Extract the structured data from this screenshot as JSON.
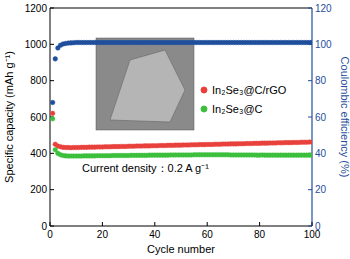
{
  "chart_data": {
    "type": "scatter",
    "xlabel": "Cycle number",
    "ylabel": "Specific capacity (mAh g⁻¹)",
    "y2label": "Coulombic efficiency (%)",
    "annotation": "Current density：0.2 A g⁻¹",
    "xlim": [
      0,
      100
    ],
    "xticks": [
      0,
      20,
      40,
      60,
      80,
      100
    ],
    "ylim": [
      0,
      1200
    ],
    "yticks": [
      0,
      200,
      400,
      600,
      800,
      1000,
      1200
    ],
    "y2lim": [
      0,
      120
    ],
    "y2ticks": [
      0,
      20,
      40,
      60,
      80,
      100,
      120
    ],
    "grid": false,
    "legend": "right",
    "x": [
      1,
      2,
      3,
      4,
      5,
      6,
      7,
      8,
      9,
      10,
      11,
      12,
      13,
      14,
      15,
      16,
      17,
      18,
      19,
      20,
      21,
      22,
      23,
      24,
      25,
      26,
      27,
      28,
      29,
      30,
      31,
      32,
      33,
      34,
      35,
      36,
      37,
      38,
      39,
      40,
      41,
      42,
      43,
      44,
      45,
      46,
      47,
      48,
      49,
      50,
      51,
      52,
      53,
      54,
      55,
      56,
      57,
      58,
      59,
      60,
      61,
      62,
      63,
      64,
      65,
      66,
      67,
      68,
      69,
      70,
      71,
      72,
      73,
      74,
      75,
      76,
      77,
      78,
      79,
      80,
      81,
      82,
      83,
      84,
      85,
      86,
      87,
      88,
      89,
      90,
      91,
      92,
      93,
      94,
      95,
      96,
      97,
      98,
      99,
      100
    ],
    "series": [
      {
        "name": "In₂Se₃@C/rGO",
        "color": "#e8413c",
        "marker": "circle",
        "values": [
          620,
          450,
          440,
          436,
          433,
          432,
          432,
          431,
          432,
          432,
          432,
          433,
          433,
          433,
          434,
          434,
          434,
          435,
          435,
          435,
          436,
          436,
          436,
          437,
          437,
          437,
          438,
          438,
          438,
          439,
          439,
          439,
          440,
          440,
          440,
          441,
          441,
          441,
          442,
          442,
          442,
          443,
          443,
          443,
          444,
          444,
          444,
          445,
          445,
          445,
          446,
          446,
          446,
          447,
          447,
          447,
          448,
          448,
          448,
          449,
          449,
          449,
          450,
          450,
          450,
          451,
          451,
          451,
          452,
          452,
          452,
          453,
          453,
          453,
          454,
          454,
          454,
          455,
          455,
          455,
          456,
          456,
          456,
          457,
          457,
          457,
          458,
          458,
          458,
          459,
          459,
          459,
          460,
          460,
          460,
          461,
          461,
          461,
          462,
          462
        ]
      },
      {
        "name": "In₂Se₃@C",
        "color": "#3cbf3c",
        "marker": "circle",
        "values": [
          590,
          420,
          400,
          392,
          388,
          386,
          385,
          385,
          385,
          385,
          385,
          385,
          386,
          386,
          386,
          386,
          386,
          387,
          387,
          387,
          387,
          387,
          387,
          388,
          388,
          388,
          388,
          388,
          388,
          388,
          389,
          389,
          389,
          389,
          389,
          389,
          389,
          390,
          390,
          390,
          390,
          390,
          390,
          390,
          390,
          391,
          391,
          391,
          391,
          391,
          391,
          391,
          391,
          391,
          392,
          392,
          392,
          392,
          392,
          392,
          392,
          392,
          392,
          392,
          392,
          392,
          392,
          392,
          391,
          391,
          391,
          391,
          391,
          391,
          391,
          391,
          391,
          391,
          390,
          390,
          391,
          390,
          390,
          390,
          390,
          390,
          390,
          390,
          390,
          390,
          390,
          390,
          390,
          390,
          390,
          390,
          390,
          390,
          390,
          390
        ]
      },
      {
        "name": "Coulombic efficiency",
        "axis": "y2",
        "color": "#1f4e9c",
        "marker": "circle",
        "values": [
          68,
          92,
          98,
          99.5,
          100.2,
          100.5,
          100.7,
          100.8,
          100.9,
          101,
          101,
          101,
          101,
          101,
          101,
          101,
          101,
          101,
          101,
          101,
          101,
          101,
          101,
          101,
          101,
          101,
          101,
          101,
          101,
          101,
          101,
          101,
          101,
          101,
          101,
          101,
          101,
          101,
          101,
          101,
          101,
          101,
          101,
          101,
          101,
          101,
          101,
          101,
          101,
          101,
          101,
          101,
          101,
          101,
          101,
          101,
          101,
          101,
          101,
          101,
          101,
          101,
          101,
          101,
          101,
          101,
          101,
          101,
          101,
          101,
          101,
          101,
          101,
          101,
          101,
          101,
          101,
          101,
          101,
          101,
          101,
          101,
          101,
          101,
          101,
          101,
          101,
          101,
          101,
          101,
          101,
          101,
          101,
          101,
          101,
          101,
          101,
          101,
          101,
          101
        ]
      }
    ]
  }
}
